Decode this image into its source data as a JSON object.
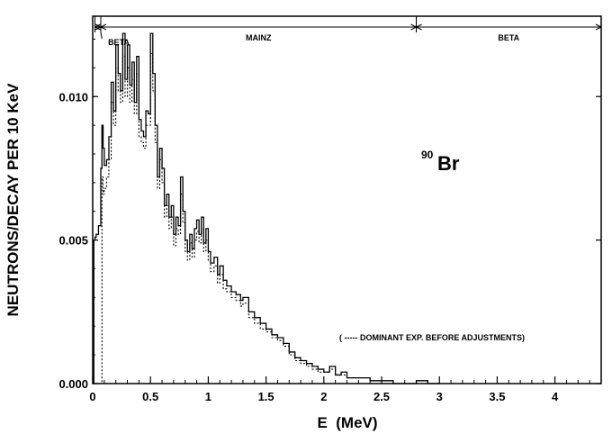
{
  "chart_data": {
    "type": "line",
    "xlabel": "E  (MeV)",
    "ylabel": "NEUTRONS/DECAY PER 10 KeV",
    "xlim": [
      0,
      4.4
    ],
    "ylim": [
      0,
      0.0128
    ],
    "x_ticks": [
      "0",
      "0.5",
      "1",
      "1.5",
      "2",
      "2.5",
      "3",
      "3.5",
      "4"
    ],
    "x_tick_values": [
      0,
      0.5,
      1,
      1.5,
      2,
      2.5,
      3,
      3.5,
      4
    ],
    "y_ticks": [
      "0.000",
      "0.005",
      "0.010"
    ],
    "y_tick_values": [
      0,
      0.005,
      0.01
    ],
    "annotation": "Br",
    "annotation_mass": "90",
    "regions": [
      {
        "label": "BETA",
        "from": 0.02,
        "to": 0.07
      },
      {
        "label": "MAINZ",
        "from": 0.07,
        "to": 2.8
      },
      {
        "label": "BETA",
        "from": 2.8,
        "to": 4.4
      }
    ],
    "legend": {
      "text": "( ----- DOMINANT EXP. BEFORE ADJUSTMENTS)",
      "style": "dotted"
    },
    "series": [
      {
        "style": "solid",
        "x": [
          0.0,
          0.01,
          0.02,
          0.03,
          0.05,
          0.07,
          0.08,
          0.09,
          0.1,
          0.12,
          0.14,
          0.16,
          0.18,
          0.2,
          0.22,
          0.24,
          0.26,
          0.28,
          0.3,
          0.32,
          0.34,
          0.36,
          0.38,
          0.4,
          0.42,
          0.44,
          0.46,
          0.48,
          0.5,
          0.52,
          0.54,
          0.56,
          0.58,
          0.6,
          0.62,
          0.64,
          0.66,
          0.68,
          0.7,
          0.72,
          0.74,
          0.76,
          0.78,
          0.8,
          0.82,
          0.84,
          0.86,
          0.88,
          0.9,
          0.92,
          0.94,
          0.96,
          0.98,
          1.0,
          1.02,
          1.05,
          1.08,
          1.1,
          1.13,
          1.16,
          1.2,
          1.24,
          1.28,
          1.3,
          1.35,
          1.4,
          1.45,
          1.5,
          1.55,
          1.6,
          1.65,
          1.7,
          1.75,
          1.8,
          1.85,
          1.9,
          1.95,
          2.0,
          2.05,
          2.1,
          2.15,
          2.2,
          2.3,
          2.4,
          2.5,
          2.6,
          2.7,
          2.8,
          2.9,
          3.0
        ],
        "y": [
          0.0,
          0.005,
          0.0051,
          0.0052,
          0.0055,
          0.0075,
          0.009,
          0.0082,
          0.0076,
          0.0078,
          0.0086,
          0.0105,
          0.0095,
          0.0118,
          0.0108,
          0.0102,
          0.0122,
          0.0106,
          0.0118,
          0.0104,
          0.0112,
          0.0098,
          0.0114,
          0.0092,
          0.0088,
          0.0086,
          0.0095,
          0.0094,
          0.0122,
          0.0108,
          0.009,
          0.0072,
          0.0082,
          0.0075,
          0.0062,
          0.0066,
          0.0058,
          0.0062,
          0.0052,
          0.0058,
          0.0055,
          0.0072,
          0.006,
          0.005,
          0.0046,
          0.0052,
          0.0047,
          0.0054,
          0.0057,
          0.0052,
          0.0058,
          0.0049,
          0.0054,
          0.0046,
          0.0042,
          0.0044,
          0.0038,
          0.0041,
          0.0036,
          0.0034,
          0.0032,
          0.0031,
          0.0029,
          0.003,
          0.0025,
          0.0023,
          0.0021,
          0.0019,
          0.0017,
          0.0016,
          0.0014,
          0.0011,
          0.0009,
          0.0008,
          0.0007,
          0.0006,
          0.0005,
          0.0004,
          0.0006,
          0.0003,
          0.0004,
          0.0002,
          0.0002,
          0.0001,
          0.0001,
          0.0,
          0.0,
          0.0001,
          0.0,
          0.0
        ]
      },
      {
        "style": "dotted",
        "x": [
          0.0,
          0.02,
          0.04,
          0.05,
          0.06,
          0.07,
          0.08,
          0.09,
          0.1,
          0.12,
          0.14,
          0.16,
          0.18,
          0.2,
          0.22,
          0.24,
          0.26,
          0.28,
          0.3,
          0.32,
          0.34,
          0.36,
          0.38,
          0.4,
          0.42,
          0.44,
          0.46,
          0.48,
          0.5,
          0.52,
          0.54,
          0.56,
          0.58,
          0.6,
          0.62,
          0.64,
          0.66,
          0.68,
          0.7,
          0.72,
          0.74,
          0.76,
          0.78,
          0.8,
          0.82,
          0.84,
          0.86,
          0.88,
          0.9,
          0.92,
          0.94,
          0.96,
          0.98,
          1.0,
          1.02,
          1.05,
          1.08,
          1.1,
          1.13,
          1.16,
          1.2,
          1.24,
          1.28,
          1.3,
          1.35,
          1.4,
          1.45,
          1.5,
          1.55,
          1.6,
          1.65,
          1.7,
          1.75,
          1.8,
          1.85,
          1.9,
          1.95,
          2.0,
          2.05,
          2.1,
          2.15,
          2.2,
          2.3,
          2.4,
          2.5,
          2.6,
          2.7,
          2.8,
          2.9,
          3.0
        ],
        "y": [
          0.0,
          0.0,
          0.0,
          0.0,
          0.0,
          0.0,
          0.0072,
          0.0066,
          0.0068,
          0.0072,
          0.0078,
          0.0098,
          0.009,
          0.011,
          0.0102,
          0.0098,
          0.0114,
          0.01,
          0.011,
          0.0098,
          0.0106,
          0.0094,
          0.0108,
          0.0086,
          0.0084,
          0.0082,
          0.009,
          0.009,
          0.0115,
          0.0102,
          0.0084,
          0.0068,
          0.0078,
          0.007,
          0.0058,
          0.0062,
          0.0054,
          0.0058,
          0.0048,
          0.0054,
          0.0052,
          0.0066,
          0.0056,
          0.0046,
          0.0043,
          0.0049,
          0.0044,
          0.005,
          0.0053,
          0.0049,
          0.0054,
          0.0046,
          0.005,
          0.0043,
          0.0039,
          0.0041,
          0.0035,
          0.0038,
          0.0033,
          0.0032,
          0.003,
          0.0029,
          0.0027,
          0.0028,
          0.0023,
          0.0021,
          0.0019,
          0.0018,
          0.0016,
          0.0015,
          0.0013,
          0.001,
          0.0008,
          0.0007,
          0.0006,
          0.0005,
          0.0004,
          0.0004,
          0.0005,
          0.0003,
          0.0003,
          0.0002,
          0.0002,
          0.0001,
          0.0001,
          0.0,
          0.0,
          0.0001,
          0.0,
          0.0
        ]
      }
    ]
  }
}
